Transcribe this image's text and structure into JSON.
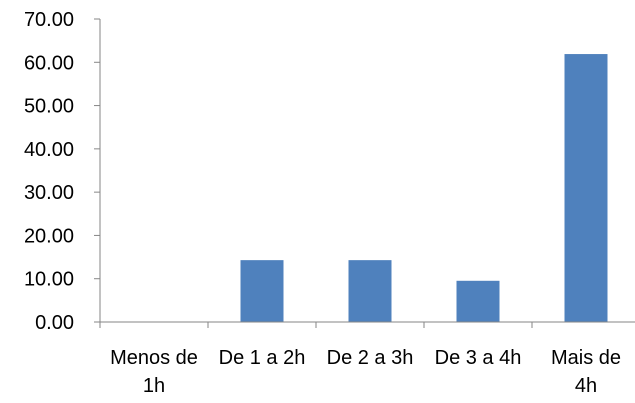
{
  "chart_data": {
    "type": "bar",
    "categories": [
      [
        "Menos de",
        "1h"
      ],
      [
        "De 1 a 2h"
      ],
      [
        "De 2 a 3h"
      ],
      [
        "De 3 a 4h"
      ],
      [
        "Mais de",
        "4h"
      ]
    ],
    "values": [
      0,
      14.29,
      14.29,
      9.52,
      61.9
    ],
    "ylim": [
      0,
      70
    ],
    "yticks": [
      "0.00",
      "10.00",
      "20.00",
      "30.00",
      "40.00",
      "50.00",
      "60.00",
      "70.00"
    ],
    "title": "",
    "xlabel": "",
    "ylabel": "",
    "grid": false,
    "legend": "none",
    "colors": {
      "bar": "#4F81BD",
      "axis": "#868686"
    }
  }
}
